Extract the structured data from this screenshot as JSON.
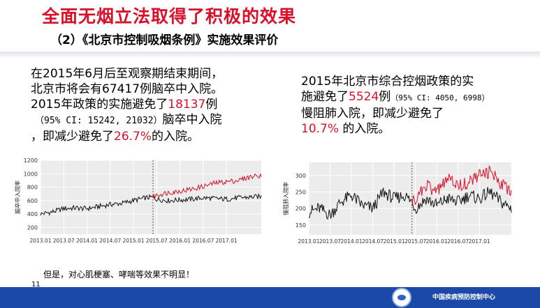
{
  "title": "全面无烟立法取得了积极的效果",
  "subtitle": "（2）《北京市控制吸烟条例》实施效果评价",
  "left_text": {
    "line1": "在2015年6月后至观察期结束期间，",
    "line2_a": "北京市将会有",
    "line2_num": "67417",
    "line2_b": "例脑卒中入院。",
    "line3_a": "2015年政策的实施避免了",
    "line3_num": "18137",
    "line3_b": "例",
    "line4_ci": "（95% CI: 15242, 21032）",
    "line4_b": "脑卒中入院",
    "line5_a": "，即减少避免了",
    "line5_pct": "26.7%",
    "line5_b": "的入院。"
  },
  "right_text": {
    "line1": "2015年北京市综合控烟政策的实",
    "line2_a": "施避免了",
    "line2_num": "5524",
    "line2_b": "例",
    "line2_ci": "（95% CI: 4050, 6998）",
    "line3": "慢阻肺入院，即减少避免了",
    "line4_pct": "10.7%",
    "line4_b": " 的入院。"
  },
  "footnote": "但是，对心肌梗塞、哮喘等效果不明显！",
  "page_number": "11",
  "footer_org": "中国疾病预防控制中心",
  "colors": {
    "accent": "#d8102a",
    "footer": "#1a49a8",
    "observed": "#d8102a",
    "counterfactual": "#111111"
  },
  "chart_data": [
    {
      "type": "line",
      "ylabel": "脑卒中入院率",
      "xlabel": "",
      "ylim": [
        100,
        1200
      ],
      "yticks": [
        200,
        400,
        600,
        800,
        1000,
        1200
      ],
      "xticks": [
        "2013.01",
        "2013.07",
        "2014.01",
        "2014.07",
        "2015.01",
        "2015.07",
        "2016.01",
        "2016.07",
        "2017.01"
      ],
      "xlim": [
        2013.0,
        2017.75
      ],
      "policy_date": 2015.42,
      "grid": true,
      "series": [
        {
          "role": "counterfactual",
          "points": [
            [
              2013.0,
              400
            ],
            [
              2013.25,
              430
            ],
            [
              2013.5,
              480
            ],
            [
              2013.75,
              490
            ],
            [
              2014.0,
              480
            ],
            [
              2014.25,
              510
            ],
            [
              2014.5,
              540
            ],
            [
              2014.75,
              560
            ],
            [
              2015.0,
              600
            ],
            [
              2015.25,
              640
            ],
            [
              2015.42,
              650
            ],
            [
              2015.5,
              620
            ],
            [
              2015.75,
              600
            ],
            [
              2016.0,
              610
            ],
            [
              2016.25,
              620
            ],
            [
              2016.5,
              640
            ],
            [
              2016.75,
              630
            ],
            [
              2017.0,
              620
            ],
            [
              2017.25,
              640
            ],
            [
              2017.5,
              650
            ],
            [
              2017.75,
              660
            ]
          ]
        },
        {
          "role": "observed",
          "points": [
            [
              2015.42,
              650
            ],
            [
              2015.5,
              680
            ],
            [
              2015.75,
              720
            ],
            [
              2016.0,
              740
            ],
            [
              2016.25,
              770
            ],
            [
              2016.5,
              810
            ],
            [
              2016.75,
              860
            ],
            [
              2017.0,
              880
            ],
            [
              2017.25,
              900
            ],
            [
              2017.5,
              950
            ],
            [
              2017.75,
              980
            ]
          ]
        }
      ]
    },
    {
      "type": "line",
      "ylabel": "慢阻肺入院率",
      "xlabel": "",
      "ylim": [
        120,
        340
      ],
      "yticks": [
        150,
        200,
        250,
        300
      ],
      "xticks": [
        "2013.01",
        "2013.07",
        "2014.01",
        "2014.07",
        "2015.01",
        "2015.07",
        "2016.01",
        "2016.07",
        "2017.01"
      ],
      "xlim": [
        2013.0,
        2017.75
      ],
      "policy_date": 2015.42,
      "grid": true,
      "series": [
        {
          "role": "counterfactual",
          "points": [
            [
              2013.0,
              190
            ],
            [
              2013.25,
              200
            ],
            [
              2013.5,
              180
            ],
            [
              2013.75,
              220
            ],
            [
              2014.0,
              240
            ],
            [
              2014.25,
              210
            ],
            [
              2014.5,
              200
            ],
            [
              2014.75,
              250
            ],
            [
              2015.0,
              230
            ],
            [
              2015.25,
              240
            ],
            [
              2015.42,
              220
            ],
            [
              2015.5,
              200
            ],
            [
              2015.75,
              230
            ],
            [
              2016.0,
              210
            ],
            [
              2016.25,
              230
            ],
            [
              2016.5,
              220
            ],
            [
              2016.75,
              240
            ],
            [
              2017.0,
              230
            ],
            [
              2017.25,
              250
            ],
            [
              2017.5,
              220
            ],
            [
              2017.75,
              200
            ]
          ]
        },
        {
          "role": "observed",
          "points": [
            [
              2015.42,
              220
            ],
            [
              2015.5,
              230
            ],
            [
              2015.75,
              270
            ],
            [
              2016.0,
              250
            ],
            [
              2016.25,
              290
            ],
            [
              2016.5,
              270
            ],
            [
              2016.75,
              280
            ],
            [
              2017.0,
              300
            ],
            [
              2017.25,
              310
            ],
            [
              2017.5,
              280
            ],
            [
              2017.75,
              250
            ]
          ]
        }
      ]
    }
  ]
}
